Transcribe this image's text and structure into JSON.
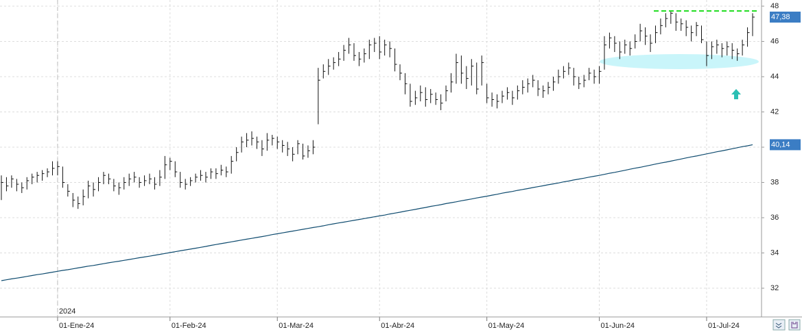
{
  "chart_data": {
    "type": "ohlc",
    "year_label": "2024",
    "categories": [
      null,
      null,
      null,
      null,
      null,
      null,
      null,
      null,
      null,
      null,
      null,
      "01-Ene-24",
      null,
      null,
      null,
      null,
      null,
      null,
      null,
      null,
      null,
      null,
      null,
      null,
      null,
      null,
      null,
      null,
      null,
      null,
      null,
      null,
      null,
      "01-Feb-24",
      null,
      null,
      null,
      null,
      null,
      null,
      null,
      null,
      null,
      null,
      null,
      null,
      null,
      null,
      null,
      null,
      null,
      null,
      null,
      null,
      "01-Mar-24",
      null,
      null,
      null,
      null,
      null,
      null,
      null,
      null,
      null,
      null,
      null,
      null,
      null,
      null,
      null,
      null,
      null,
      null,
      null,
      "01-Abr-24",
      null,
      null,
      null,
      null,
      null,
      null,
      null,
      null,
      null,
      null,
      null,
      null,
      null,
      null,
      null,
      null,
      null,
      null,
      null,
      null,
      "01-May-24",
      null,
      null,
      null,
      null,
      null,
      null,
      null,
      null,
      null,
      null,
      null,
      null,
      null,
      null,
      null,
      null,
      null,
      null,
      null,
      null,
      null,
      "01-Jun-24",
      null,
      null,
      null,
      null,
      null,
      null,
      null,
      null,
      null,
      null,
      null,
      null,
      null,
      null,
      null,
      null,
      null,
      null,
      null,
      null,
      "01-Jul-24",
      null,
      null,
      null,
      null,
      null,
      null,
      null,
      null,
      null
    ],
    "high": [
      38.4,
      38.3,
      38.4,
      38.2,
      38.0,
      38.3,
      38.5,
      38.6,
      38.7,
      38.8,
      39.2,
      39.2,
      38.9,
      37.9,
      37.4,
      37.2,
      37.6,
      38.1,
      38.0,
      38.3,
      38.6,
      38.5,
      38.2,
      38.0,
      38.3,
      38.5,
      38.6,
      38.3,
      38.4,
      38.5,
      38.3,
      38.7,
      39.5,
      39.4,
      39.2,
      38.6,
      38.2,
      38.3,
      38.5,
      38.7,
      38.6,
      38.8,
      38.8,
      39.0,
      38.9,
      39.5,
      40.0,
      40.6,
      40.8,
      40.9,
      40.6,
      40.4,
      40.8,
      40.7,
      40.6,
      40.4,
      40.3,
      40.0,
      40.4,
      40.2,
      40.1,
      40.4,
      44.5,
      44.7,
      45.0,
      45.1,
      45.4,
      45.8,
      46.2,
      45.9,
      45.4,
      45.6,
      46.1,
      46.2,
      46.3,
      46.1,
      46.0,
      45.6,
      44.7,
      44.2,
      43.6,
      43.2,
      43.5,
      43.4,
      43.3,
      43.1,
      43.0,
      43.5,
      44.2,
      45.3,
      45.2,
      44.6,
      45.0,
      44.8,
      45.2,
      43.6,
      43.1,
      43.0,
      43.2,
      43.4,
      43.2,
      43.5,
      43.8,
      43.9,
      44.1,
      43.8,
      43.5,
      43.7,
      44.0,
      44.4,
      44.6,
      44.8,
      44.5,
      44.0,
      44.1,
      44.5,
      44.4,
      44.6,
      46.3,
      46.5,
      46.3,
      46.0,
      46.1,
      46.0,
      46.4,
      47.0,
      46.8,
      46.4,
      46.9,
      47.3,
      47.6,
      47.7,
      47.6,
      47.3,
      47.2,
      46.9,
      47.1,
      46.9,
      46.0,
      46.0,
      46.1,
      45.9,
      46.0,
      45.9,
      45.6,
      46.1,
      46.8,
      47.6
    ],
    "low": [
      37.0,
      37.5,
      37.7,
      37.5,
      37.4,
      37.6,
      37.9,
      38.0,
      38.1,
      38.3,
      38.4,
      38.4,
      37.7,
      37.2,
      36.6,
      36.5,
      36.7,
      37.1,
      37.2,
      37.5,
      37.9,
      37.9,
      37.5,
      37.3,
      37.6,
      37.8,
      38.0,
      37.7,
      37.8,
      37.9,
      37.6,
      37.8,
      38.2,
      38.7,
      38.3,
      37.7,
      37.6,
      37.8,
      38.0,
      38.1,
      38.0,
      38.2,
      38.2,
      38.4,
      38.3,
      38.5,
      39.2,
      39.7,
      40.0,
      40.1,
      39.9,
      39.5,
      39.8,
      40.1,
      39.9,
      39.7,
      39.5,
      39.2,
      39.6,
      39.3,
      39.4,
      39.6,
      41.3,
      43.9,
      44.1,
      44.4,
      44.6,
      44.9,
      45.3,
      44.9,
      44.6,
      44.8,
      45.0,
      45.4,
      45.0,
      45.2,
      45.1,
      44.3,
      43.8,
      43.0,
      42.3,
      42.4,
      42.6,
      42.3,
      42.5,
      42.4,
      42.1,
      42.6,
      43.1,
      43.6,
      43.6,
      43.3,
      43.5,
      43.0,
      43.5,
      42.5,
      42.3,
      42.2,
      42.5,
      42.7,
      42.4,
      42.7,
      43.0,
      43.1,
      43.4,
      42.9,
      42.8,
      43.0,
      43.2,
      43.6,
      43.9,
      44.1,
      43.5,
      43.3,
      43.4,
      43.8,
      43.6,
      43.6,
      44.4,
      45.6,
      45.4,
      45.0,
      45.3,
      45.2,
      45.6,
      46.0,
      45.8,
      45.4,
      45.9,
      46.4,
      46.8,
      47.0,
      46.6,
      46.6,
      46.3,
      46.0,
      46.3,
      45.9,
      44.6,
      45.0,
      45.3,
      45.1,
      45.2,
      45.0,
      44.9,
      45.2,
      45.7,
      46.3
    ],
    "close": [
      38.0,
      37.8,
      38.2,
      37.9,
      37.7,
      38.1,
      38.3,
      38.4,
      38.5,
      38.6,
      38.8,
      38.9,
      38.0,
      37.5,
      37.0,
      36.8,
      37.2,
      37.8,
      37.6,
      38.0,
      38.4,
      38.2,
      37.8,
      37.7,
      38.0,
      38.2,
      38.3,
      38.0,
      38.1,
      38.2,
      37.9,
      38.3,
      39.0,
      39.2,
      38.6,
      38.0,
      37.9,
      38.1,
      38.3,
      38.4,
      38.3,
      38.6,
      38.5,
      38.7,
      38.6,
      39.2,
      39.7,
      40.3,
      40.4,
      40.5,
      40.3,
      39.9,
      40.4,
      40.5,
      40.3,
      40.1,
      39.9,
      39.6,
      40.2,
      39.5,
      39.8,
      40.0,
      43.8,
      44.3,
      44.6,
      44.8,
      45.0,
      45.5,
      45.8,
      45.2,
      45.0,
      45.3,
      45.8,
      45.9,
      45.4,
      45.8,
      45.6,
      44.7,
      44.2,
      43.6,
      42.6,
      42.8,
      43.1,
      42.7,
      43.0,
      42.7,
      42.5,
      43.2,
      43.7,
      44.8,
      44.2,
      43.9,
      44.6,
      43.3,
      44.8,
      42.8,
      42.7,
      42.6,
      42.9,
      43.1,
      42.8,
      43.2,
      43.4,
      43.6,
      43.8,
      43.3,
      43.2,
      43.4,
      43.7,
      44.0,
      44.3,
      44.5,
      44.0,
      43.6,
      43.8,
      44.2,
      44.0,
      44.3,
      45.8,
      46.2,
      45.9,
      45.4,
      45.8,
      45.6,
      46.0,
      46.6,
      46.3,
      45.9,
      46.5,
      46.9,
      47.3,
      47.6,
      47.1,
      47.0,
      46.8,
      46.5,
      46.9,
      46.1,
      45.2,
      45.7,
      45.8,
      45.6,
      45.7,
      45.5,
      45.3,
      45.8,
      46.5,
      47.38
    ],
    "color": "#111111",
    "ma": {
      "color": "#0d4a6e",
      "values": [
        32.43,
        32.48,
        32.53,
        32.57,
        32.62,
        32.67,
        32.72,
        32.77,
        32.81,
        32.86,
        32.91,
        32.96,
        33.01,
        33.05,
        33.1,
        33.15,
        33.2,
        33.25,
        33.29,
        33.34,
        33.39,
        33.44,
        33.49,
        33.53,
        33.58,
        33.63,
        33.68,
        33.73,
        33.77,
        33.82,
        33.87,
        33.92,
        33.97,
        34.02,
        34.07,
        34.12,
        34.17,
        34.22,
        34.27,
        34.32,
        34.37,
        34.43,
        34.48,
        34.53,
        34.58,
        34.63,
        34.68,
        34.73,
        34.78,
        34.83,
        34.88,
        34.93,
        34.98,
        35.04,
        35.09,
        35.14,
        35.19,
        35.24,
        35.29,
        35.34,
        35.39,
        35.44,
        35.49,
        35.54,
        35.6,
        35.65,
        35.7,
        35.75,
        35.8,
        35.85,
        35.9,
        35.95,
        36.0,
        36.05,
        36.1,
        36.15,
        36.21,
        36.26,
        36.31,
        36.37,
        36.42,
        36.47,
        36.53,
        36.58,
        36.64,
        36.69,
        36.74,
        36.8,
        36.85,
        36.9,
        36.96,
        37.01,
        37.06,
        37.12,
        37.17,
        37.22,
        37.28,
        37.33,
        37.39,
        37.44,
        37.49,
        37.55,
        37.6,
        37.65,
        37.71,
        37.76,
        37.81,
        37.87,
        37.92,
        37.97,
        38.03,
        38.08,
        38.14,
        38.19,
        38.24,
        38.3,
        38.35,
        38.4,
        38.46,
        38.52,
        38.57,
        38.63,
        38.69,
        38.75,
        38.81,
        38.86,
        38.92,
        38.98,
        39.04,
        39.1,
        39.15,
        39.21,
        39.27,
        39.33,
        39.39,
        39.45,
        39.5,
        39.56,
        39.62,
        39.68,
        39.74,
        39.79,
        39.85,
        39.91,
        39.97,
        40.03,
        40.08,
        40.14
      ]
    },
    "price_label": {
      "value": 47.38,
      "label": "47,38"
    },
    "ma_label": {
      "value": 40.14,
      "label": "40,14"
    },
    "label_color": "#3b7dc4",
    "resistance": {
      "value": 47.73,
      "color": "#22dd22"
    },
    "ylim": [
      30.37,
      48.35
    ],
    "yticks": [
      32,
      34,
      36,
      38,
      40,
      42,
      44,
      46,
      48
    ],
    "grid": true
  }
}
